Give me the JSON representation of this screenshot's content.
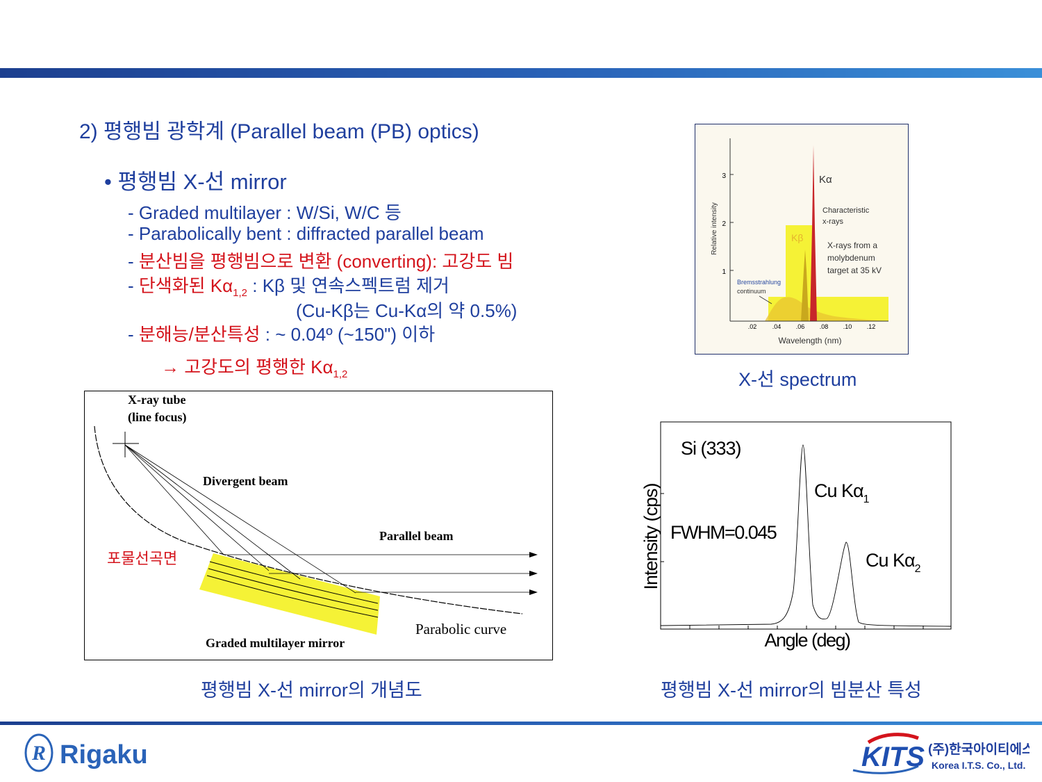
{
  "heading": "2) 평행빔 광학계 (Parallel beam (PB) optics)",
  "bullet": "• 평행빔 X-선 mirror",
  "items": {
    "i1": "- Graded multilayer : W/Si, W/C 등",
    "i2": "- Parabolically bent : diffracted parallel beam",
    "i3_dash": "- ",
    "i3_red": "분산빔을 평행빔으로 변환 (converting): 고강도 빔",
    "i4_dash": "- ",
    "i4_red": "단색화된 Kα",
    "i4_sub": "1,2",
    "i4_rest": " : Kβ 및 연속스펙트럼 제거",
    "i5": "(Cu-Kβ는 Cu-Kα의 약 0.5%)",
    "i6_dash": "- ",
    "i6_red": "분해능/분산특성",
    "i6_rest": " : ~ 0.04º (~150\") 이하",
    "arrow": "→ 고강도의 평행한 Kα",
    "arrow_sub": "1,2"
  },
  "spectrum": {
    "caption": "X-선 spectrum",
    "ylabel": "Relative intensity",
    "xlabel": "Wavelength (nm)",
    "yticks": [
      "1",
      "2",
      "3"
    ],
    "xticks": [
      ".02",
      ".04",
      ".06",
      ".08",
      ".10",
      ".12"
    ],
    "ka_label": "Kα",
    "kb_label": "Kβ",
    "char1": "Characteristic",
    "char2": "x-rays",
    "target1": "X-rays from a",
    "target2": "molybdenum",
    "target3": "target at 35 kV",
    "brems1": "Bremsstrahlung",
    "brems2": "continuum"
  },
  "mirror": {
    "caption": "평행빔 X-선 mirror의 개념도",
    "tube1": "X-ray tube",
    "tube2": "(line focus)",
    "divergent": "Divergent beam",
    "parallel": "Parallel beam",
    "paraboloid": "포물선곡면",
    "curve": "Parabolic curve",
    "multilayer": "Graded multilayer mirror"
  },
  "dispersion": {
    "caption": "평행빔 X-선 mirror의 빔분산 특성",
    "si": "Si (333)",
    "ka1": "Cu Kα",
    "ka1_sub": "1",
    "ka2": "Cu Kα",
    "ka2_sub": "2",
    "fwhm": "FWHM=0.045",
    "ylabel": "Intensity (cps)",
    "xlabel": "Angle (deg)"
  },
  "logos": {
    "rigaku": "Rigaku",
    "kits": "KITS",
    "korean": "(주)한국아이티에스",
    "english": "Korea I.T.S. Co., Ltd."
  },
  "colors": {
    "blue": "#1f3f9e",
    "red": "#d4141c",
    "yellow": "#f5f236"
  }
}
